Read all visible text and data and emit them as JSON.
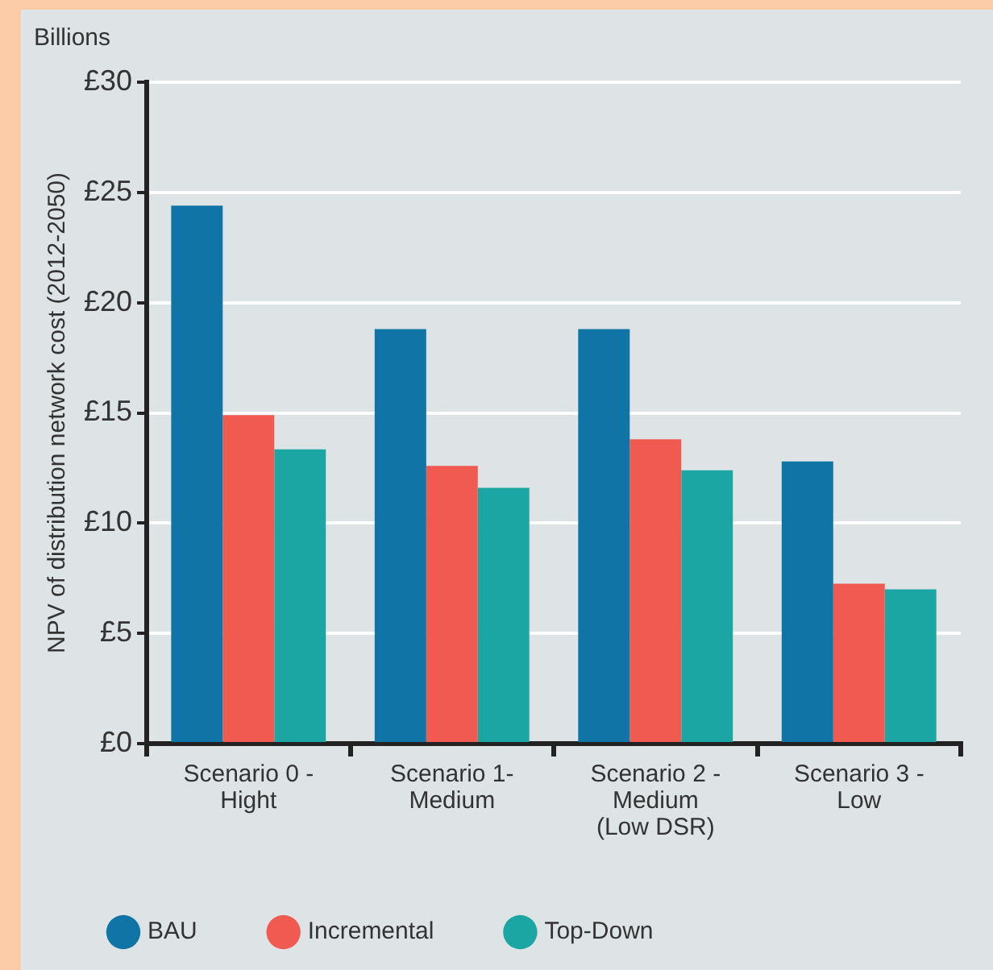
{
  "chart_data": {
    "type": "bar",
    "ylabel": "NPV of distribution network cost (2012-2050)",
    "annotations": [
      "Billions"
    ],
    "categories": [
      "Scenario 0 -\nHight",
      "Scenario 1-\nMedium",
      "Scenario 2 -\nMedium\n(Low DSR)",
      "Scenario 3 -\nLow"
    ],
    "series": [
      {
        "name": "BAU",
        "color": "#1174a6",
        "values": [
          24.4,
          18.8,
          18.8,
          12.8
        ]
      },
      {
        "name": "Incremental",
        "color": "#f05a50",
        "values": [
          14.9,
          12.6,
          13.8,
          7.25
        ]
      },
      {
        "name": "Top-Down",
        "color": "#1ca6a3",
        "values": [
          13.35,
          11.6,
          12.4,
          7.0
        ]
      }
    ],
    "ylim": [
      0,
      30
    ],
    "yticks": [
      {
        "value": 0,
        "label": "£0"
      },
      {
        "value": 5,
        "label": "£5"
      },
      {
        "value": 10,
        "label": "£10"
      },
      {
        "value": 15,
        "label": "£15"
      },
      {
        "value": 20,
        "label": "£20"
      },
      {
        "value": 25,
        "label": "£25"
      },
      {
        "value": 30,
        "label": "£30"
      }
    ],
    "grid": "y",
    "legend": "bottom"
  }
}
